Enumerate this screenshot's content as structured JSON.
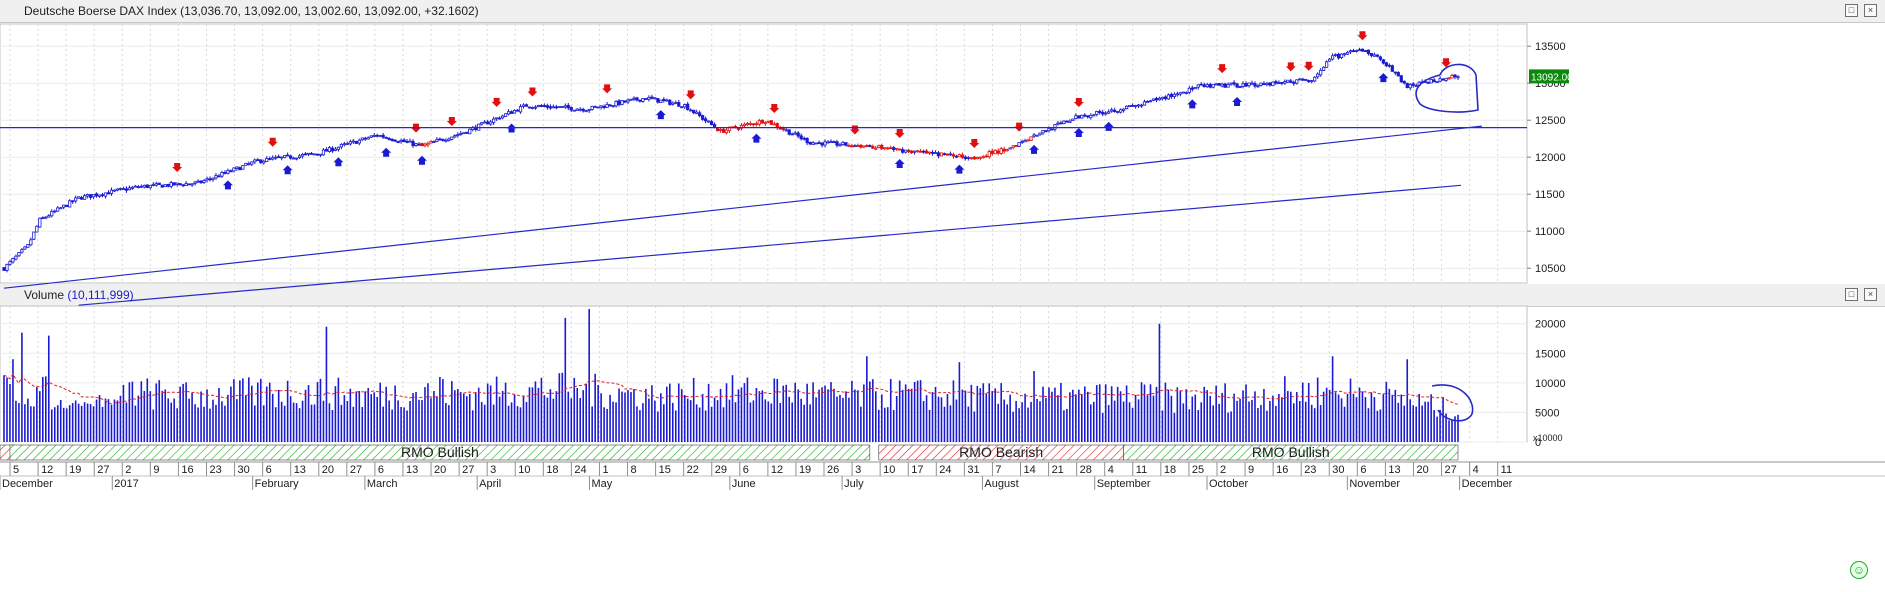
{
  "price_pane": {
    "title": "Deutsche Boerse DAX Index",
    "ohlc": "(13,036.70, 13,092.00, 13,002.60, 13,092.00, +32.1602)",
    "last_price_label": "13092.00"
  },
  "volume_pane": {
    "title": "Volume",
    "value": "(10,111,999)",
    "multiplier": "x10000"
  },
  "colors": {
    "up": "#1a1ad0",
    "down": "#e01010",
    "ma": "#e02020",
    "line": "#2828c8",
    "bullish": "#22aa22",
    "bearish": "#e02020"
  },
  "chart_data": [
    {
      "type": "candlestick",
      "title": "Deutsche Boerse DAX Index",
      "y_ticks": [
        10500,
        11000,
        11500,
        12000,
        12500,
        13000,
        13500
      ],
      "ylim": [
        10300,
        13800
      ],
      "x_day_labels": [
        "5",
        "12",
        "19",
        "27",
        "2",
        "9",
        "16",
        "23",
        "30",
        "6",
        "13",
        "20",
        "27",
        "6",
        "13",
        "20",
        "27",
        "3",
        "10",
        "18",
        "24",
        "1",
        "8",
        "15",
        "22",
        "29",
        "6",
        "12",
        "19",
        "26",
        "3",
        "10",
        "17",
        "24",
        "31",
        "7",
        "14",
        "21",
        "28",
        "4",
        "11",
        "18",
        "25",
        "2",
        "9",
        "16",
        "23",
        "30",
        "6",
        "13",
        "20",
        "27",
        "4",
        "11"
      ],
      "x_month_labels": [
        "December",
        "2017",
        "February",
        "March",
        "April",
        "May",
        "June",
        "July",
        "August",
        "September",
        "October",
        "November",
        "December"
      ],
      "price_anchor_points": [
        [
          0,
          10500
        ],
        [
          8,
          10800
        ],
        [
          12,
          11150
        ],
        [
          25,
          11450
        ],
        [
          45,
          11600
        ],
        [
          65,
          11650
        ],
        [
          85,
          11950
        ],
        [
          105,
          12050
        ],
        [
          125,
          12300
        ],
        [
          140,
          12150
        ],
        [
          155,
          12350
        ],
        [
          175,
          12700
        ],
        [
          195,
          12650
        ],
        [
          215,
          12800
        ],
        [
          228,
          12700
        ],
        [
          240,
          12350
        ],
        [
          255,
          12500
        ],
        [
          270,
          12200
        ],
        [
          290,
          12150
        ],
        [
          310,
          12050
        ],
        [
          325,
          12000
        ],
        [
          335,
          12100
        ],
        [
          345,
          12300
        ],
        [
          360,
          12550
        ],
        [
          380,
          12700
        ],
        [
          400,
          12950
        ],
        [
          425,
          13000
        ],
        [
          438,
          13050
        ],
        [
          445,
          13350
        ],
        [
          455,
          13450
        ],
        [
          462,
          13300
        ],
        [
          470,
          12950
        ],
        [
          480,
          13050
        ],
        [
          487,
          13092
        ]
      ],
      "horizontal_line": 12400,
      "trendlines": [
        [
          [
            0,
            10230
          ],
          [
            495,
            12420
          ]
        ],
        [
          [
            25,
            10000
          ],
          [
            488,
            11620
          ]
        ]
      ],
      "annotation": "circle around latest candles"
    },
    {
      "type": "bar",
      "title": "Volume",
      "y_ticks": [
        0,
        5000,
        10000,
        15000,
        20000
      ],
      "ylim": [
        0,
        23000
      ],
      "volume_anchor_points": [
        [
          0,
          10500
        ],
        [
          20,
          9500
        ],
        [
          40,
          10000
        ],
        [
          60,
          9000
        ],
        [
          80,
          9500
        ],
        [
          100,
          10000
        ],
        [
          120,
          9200
        ],
        [
          140,
          9800
        ],
        [
          160,
          9500
        ],
        [
          180,
          10500
        ],
        [
          200,
          10000
        ],
        [
          220,
          9000
        ],
        [
          240,
          9800
        ],
        [
          260,
          10000
        ],
        [
          280,
          9000
        ],
        [
          300,
          9500
        ],
        [
          320,
          9200
        ],
        [
          340,
          8500
        ],
        [
          360,
          8800
        ],
        [
          380,
          9000
        ],
        [
          400,
          8500
        ],
        [
          420,
          9500
        ],
        [
          440,
          10000
        ],
        [
          460,
          9500
        ],
        [
          487,
          6000
        ]
      ],
      "spike_values": [
        [
          3,
          14000
        ],
        [
          6,
          18500
        ],
        [
          15,
          18000
        ],
        [
          108,
          19500
        ],
        [
          146,
          11000
        ],
        [
          188,
          21000
        ],
        [
          196,
          22500
        ],
        [
          289,
          14500
        ],
        [
          320,
          13500
        ],
        [
          345,
          12000
        ],
        [
          387,
          20000
        ],
        [
          445,
          14500
        ],
        [
          470,
          14000
        ]
      ],
      "moving_average_color": "#e02020"
    }
  ],
  "rmo_bands": [
    {
      "label": "RMO Bullish",
      "start": 2,
      "end": 290,
      "kind": "bullish"
    },
    {
      "label": "RMO Bearish",
      "start": 293,
      "end": 375,
      "kind": "bearish"
    },
    {
      "label": "RMO Bullish",
      "start": 375,
      "end": 487,
      "kind": "bullish"
    }
  ]
}
